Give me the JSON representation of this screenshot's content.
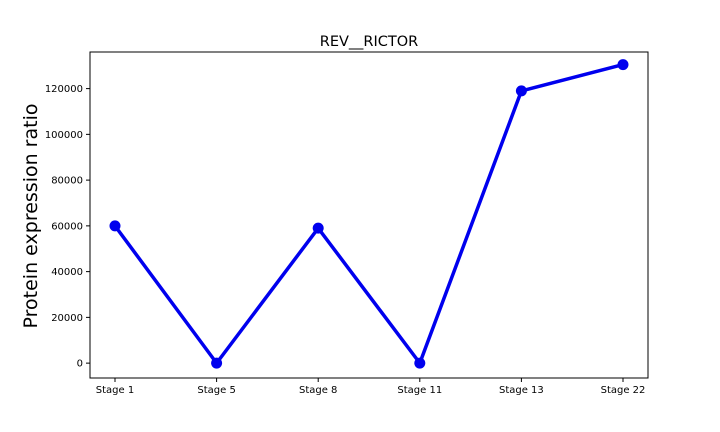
{
  "chart_data": {
    "type": "line",
    "title": "REV__RICTOR",
    "xlabel": "",
    "ylabel": "Protein expression ratio",
    "categories": [
      "Stage 1",
      "Stage 5",
      "Stage 8",
      "Stage 11",
      "Stage 13",
      "Stage 22"
    ],
    "series": [
      {
        "values": [
          60000,
          0,
          59000,
          0,
          119000,
          130500
        ],
        "color": "#0000ee"
      }
    ],
    "ylim": [
      -6500,
      136000
    ],
    "yticks": [
      0,
      20000,
      40000,
      60000,
      80000,
      100000,
      120000
    ],
    "ytick_labels": [
      "0",
      "20000",
      "40000",
      "60000",
      "80000",
      "100000",
      "120000"
    ],
    "grid": false,
    "legend": "none"
  }
}
